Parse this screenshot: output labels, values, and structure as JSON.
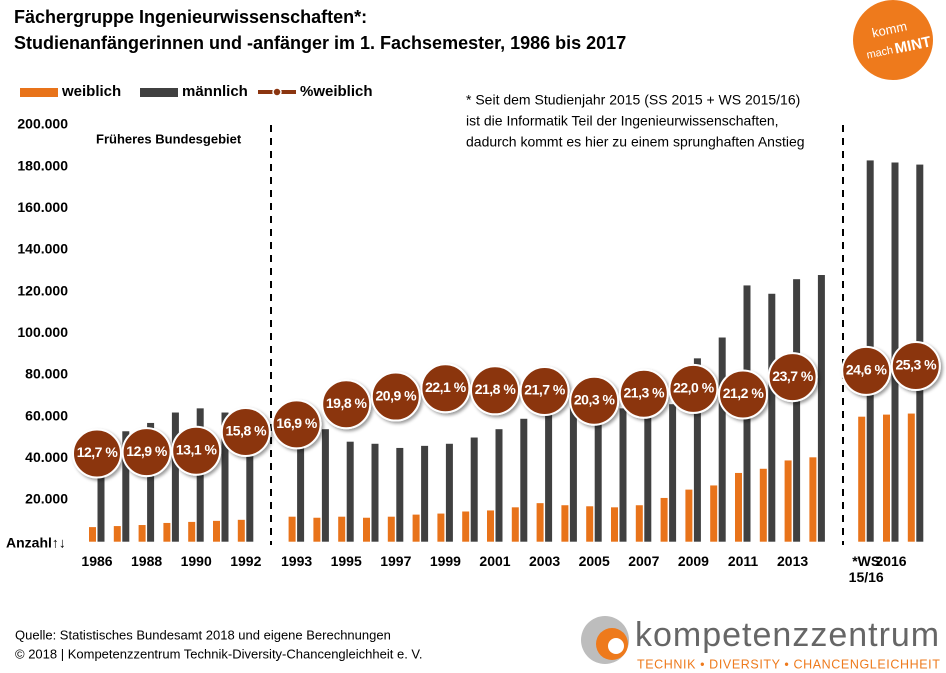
{
  "chart_data": {
    "type": "bar",
    "title": "Fächergruppe Ingenieurwissenschaften*:",
    "subtitle": "Studienanfängerinnen und -anfänger im 1. Fachsemester, 1986 bis 2017",
    "categories": [
      "1986",
      null,
      "1988",
      null,
      "1990",
      null,
      "1992",
      "1993",
      null,
      "1995",
      null,
      "1997",
      null,
      "1999",
      null,
      "2001",
      null,
      "2003",
      null,
      "2005",
      null,
      "2007",
      null,
      "2009",
      null,
      "2011",
      null,
      "2013",
      null,
      "*WS 15/16",
      "2016",
      null
    ],
    "series": [
      {
        "name": "weiblich",
        "color": "#e8731a",
        "values": [
          7000,
          7500,
          8000,
          9000,
          9500,
          10000,
          10500,
          12000,
          11500,
          12000,
          11500,
          12000,
          13000,
          13500,
          14500,
          15000,
          16500,
          18500,
          17500,
          17000,
          16500,
          17500,
          21000,
          25000,
          27000,
          33000,
          35000,
          39000,
          40500,
          60000,
          61000,
          61500
        ]
      },
      {
        "name": "männlich",
        "color": "#404040",
        "values": [
          45000,
          53000,
          57000,
          62000,
          64000,
          62000,
          55000,
          58000,
          54000,
          48000,
          47000,
          45000,
          46000,
          47000,
          50000,
          54000,
          59000,
          63000,
          65000,
          66000,
          64000,
          64000,
          66000,
          88000,
          98000,
          123000,
          119000,
          126000,
          128000,
          183000,
          182000,
          181000
        ]
      },
      {
        "name": "%weiblich",
        "color": "#8b3510",
        "type": "scatter",
        "axis": "y2",
        "values": [
          12.7,
          null,
          12.9,
          null,
          13.1,
          null,
          15.8,
          16.9,
          null,
          19.8,
          null,
          20.9,
          null,
          22.1,
          null,
          21.8,
          null,
          21.7,
          null,
          20.3,
          null,
          21.3,
          null,
          22.0,
          null,
          21.2,
          null,
          23.7,
          null,
          24.6,
          null,
          25.3
        ],
        "value_labels": [
          "12,7 %",
          null,
          "12,9 %",
          null,
          "13,1 %",
          null,
          "15,8 %",
          "16,9 %",
          null,
          "19,8 %",
          null,
          "20,9 %",
          null,
          "22,1 %",
          null,
          "21,8 %",
          null,
          "21,7 %",
          null,
          "20,3 %",
          null,
          "21,3 %",
          null,
          "22,0 %",
          null,
          "21,2 %",
          null,
          "23,7 %",
          null,
          "24,6 %",
          null,
          "25,3 %"
        ]
      }
    ],
    "ylim": [
      0,
      200000
    ],
    "yticks": [
      {
        "value": 20000,
        "label": "20.000"
      },
      {
        "value": 40000,
        "label": "40.000"
      },
      {
        "value": 60000,
        "label": "60.000"
      },
      {
        "value": 80000,
        "label": "80.000"
      },
      {
        "value": 100000,
        "label": "100.000"
      },
      {
        "value": 120000,
        "label": "120.000"
      },
      {
        "value": 140000,
        "label": "140.000"
      },
      {
        "value": 160000,
        "label": "160.000"
      },
      {
        "value": 180000,
        "label": "180.000"
      },
      {
        "value": 200000,
        "label": "200.000"
      }
    ],
    "y2lim": [
      0,
      60
    ],
    "y_label": "Anzahl↑↓",
    "grid": false,
    "annotations": [
      "Früheres Bundesgebiet"
    ],
    "footnote": [
      "* Seit dem Studienjahr 2015 (SS 2015 + WS 2015/16)",
      "ist die Informatik  Teil der Ingenieurwissenschaften,",
      "dadurch kommt es hier zu einem sprunghaften Anstieg"
    ]
  },
  "source": [
    "Quelle: Statistisches Bundesamt 2018 und eigene Berechnungen",
    "© 2018 | Kompetenzzentrum Technik-Diversity-Chancengleichheit e. V."
  ],
  "logo_mint": [
    "komm",
    "mach",
    "MINT"
  ],
  "logo_kompetenz": {
    "name": "kompetenzzentrum",
    "tagline": "TECHNIK • DIVERSITY • CHANCENGLEICHHEIT"
  }
}
